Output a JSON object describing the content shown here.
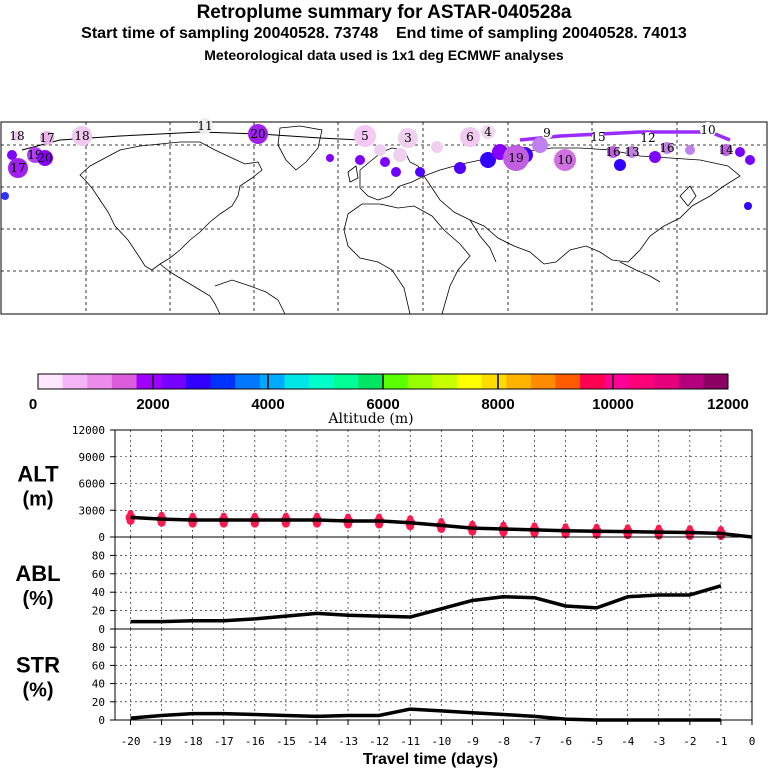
{
  "title": "Retroplume summary for ASTAR-040528a",
  "subtitle_start": "Start time of sampling 20040528. 73748",
  "subtitle_end": "End time of sampling 20040528. 74013",
  "subtitle_met": "Meteorological data used is 1x1 deg ECMWF analyses",
  "colorbar": {
    "label": "Altitude (m)",
    "ticks": [
      "0",
      "2000",
      "4000",
      "6000",
      "8000",
      "10000",
      "12000"
    ],
    "colors": [
      "#ffe6ff",
      "#f5b4f5",
      "#eb8ceb",
      "#dc5adc",
      "#a000ff",
      "#7800ff",
      "#3200ff",
      "#0032ff",
      "#0078ff",
      "#00aaff",
      "#00e6e6",
      "#00ffc8",
      "#00ff96",
      "#00e664",
      "#5aff00",
      "#96ff00",
      "#c8ff00",
      "#ffff00",
      "#ffdc00",
      "#ffb400",
      "#ff8c00",
      "#ff5a00",
      "#ff0050",
      "#ff0096",
      "#ff0078",
      "#e6007c",
      "#b4007c",
      "#8c0064"
    ]
  },
  "map_labels": {
    "markers": [
      "18",
      "17",
      "18",
      "11",
      "20",
      "5",
      "3",
      "6",
      "4",
      "9",
      "17",
      "19",
      "10",
      "20",
      "19",
      "15",
      "16",
      "12",
      "16",
      "13",
      "10",
      "14"
    ]
  },
  "chart_data": [
    {
      "type": "line",
      "panel": "ALT",
      "ylabel": "ALT (m)",
      "yticks": [
        "12000",
        "9000",
        "6000",
        "3000",
        "0"
      ],
      "ylim": [
        0,
        12000
      ],
      "x": [
        -20,
        -19,
        -18,
        -17,
        -16,
        -15,
        -14,
        -13,
        -12,
        -11,
        -10,
        -9,
        -8,
        -7,
        -6,
        -5,
        -4,
        -3,
        -2,
        -1,
        0
      ],
      "values": [
        2200,
        2000,
        1900,
        1900,
        1900,
        1900,
        1900,
        1800,
        1800,
        1600,
        1300,
        1000,
        900,
        800,
        700,
        650,
        600,
        550,
        500,
        400,
        0
      ]
    },
    {
      "type": "line",
      "panel": "ABL",
      "ylabel": "ABL (%)",
      "yticks": [
        "80",
        "60",
        "40",
        "20",
        "0"
      ],
      "ylim": [
        0,
        100
      ],
      "x": [
        -20,
        -19,
        -18,
        -17,
        -16,
        -15,
        -14,
        -13,
        -12,
        -11,
        -10,
        -9,
        -8,
        -7,
        -6,
        -5,
        -4,
        -3,
        -2,
        -1
      ],
      "values": [
        8,
        8,
        9,
        9,
        11,
        14,
        17,
        15,
        14,
        13,
        22,
        31,
        35,
        34,
        25,
        23,
        35,
        37,
        37,
        47
      ]
    },
    {
      "type": "line",
      "panel": "STR",
      "ylabel": "STR (%)",
      "yticks": [
        "80",
        "60",
        "40",
        "20",
        "0"
      ],
      "ylim": [
        0,
        100
      ],
      "x": [
        -20,
        -19,
        -18,
        -17,
        -16,
        -15,
        -14,
        -13,
        -12,
        -11,
        -10,
        -9,
        -8,
        -7,
        -6,
        -5,
        -4,
        -3,
        -2,
        -1
      ],
      "values": [
        2,
        5,
        7,
        7,
        6,
        5,
        4,
        5,
        5,
        12,
        10,
        8,
        6,
        4,
        1,
        0,
        0,
        0,
        0,
        0
      ],
      "xticks": [
        "-20",
        "-19",
        "-18",
        "-17",
        "-16",
        "-15",
        "-14",
        "-13",
        "-12",
        "-11",
        "-10",
        "-9",
        "-8",
        "-7",
        "-6",
        "-5",
        "-4",
        "-3",
        "-2",
        "-1",
        "0"
      ],
      "xlabel": "Travel time (days)"
    }
  ]
}
